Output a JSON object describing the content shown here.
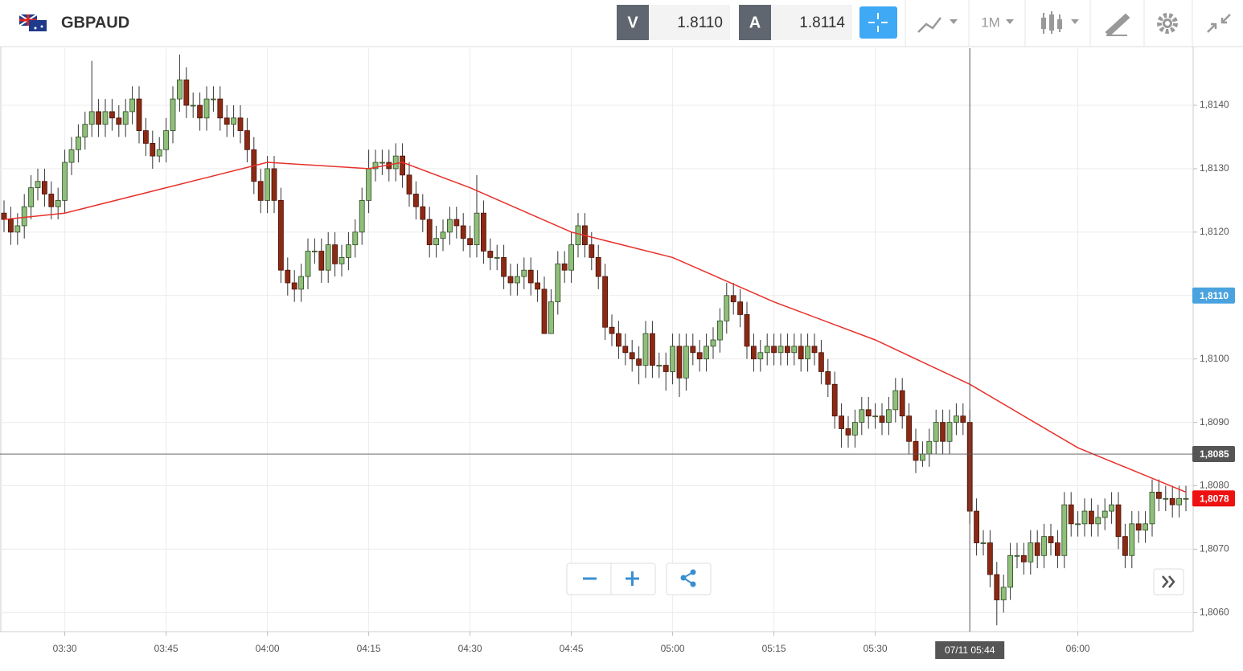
{
  "header": {
    "symbol": "GBPAUD",
    "bid_letter": "V",
    "bid": "1.8110",
    "ask_letter": "A",
    "ask": "1.8114",
    "timeframe": "1M"
  },
  "chart_data": {
    "type": "candlestick",
    "up_color": "#8fbf7a",
    "down_color": "#8b2a14",
    "x": [
      "03:21",
      "03:22",
      "03:23",
      "03:24",
      "03:25",
      "03:26",
      "03:27",
      "03:28",
      "03:29",
      "03:30",
      "03:31",
      "03:32",
      "03:33",
      "03:34",
      "03:35",
      "03:36",
      "03:37",
      "03:38",
      "03:39",
      "03:40",
      "03:41",
      "03:42",
      "03:43",
      "03:44",
      "03:45",
      "03:46",
      "03:47",
      "03:48",
      "03:49",
      "03:50",
      "03:51",
      "03:52",
      "03:53",
      "03:54",
      "03:55",
      "03:56",
      "03:57",
      "03:58",
      "03:59",
      "04:00",
      "04:01",
      "04:02",
      "04:03",
      "04:04",
      "04:05",
      "04:06",
      "04:07",
      "04:08",
      "04:09",
      "04:10",
      "04:11",
      "04:12",
      "04:13",
      "04:14",
      "04:15",
      "04:16",
      "04:17",
      "04:18",
      "04:19",
      "04:20",
      "04:21",
      "04:22",
      "04:23",
      "04:24",
      "04:25",
      "04:26",
      "04:27",
      "04:28",
      "04:29",
      "04:30",
      "04:31",
      "04:32",
      "04:33",
      "04:34",
      "04:35",
      "04:36",
      "04:37",
      "04:38",
      "04:39",
      "04:40",
      "04:41",
      "04:42",
      "04:43",
      "04:44",
      "04:45",
      "04:46",
      "04:47",
      "04:48",
      "04:49",
      "04:50",
      "04:51",
      "04:52",
      "04:53",
      "04:54",
      "04:55",
      "04:56",
      "04:57",
      "04:58",
      "04:59",
      "05:00",
      "05:01",
      "05:02",
      "05:03",
      "05:04",
      "05:05",
      "05:06",
      "05:07",
      "05:08",
      "05:09",
      "05:10",
      "05:11",
      "05:12",
      "05:13",
      "05:14",
      "05:15",
      "05:16",
      "05:17",
      "05:18",
      "05:19",
      "05:20",
      "05:21",
      "05:22",
      "05:23",
      "05:24",
      "05:25",
      "05:26",
      "05:27",
      "05:28",
      "05:29",
      "05:30",
      "05:31",
      "05:32",
      "05:33",
      "05:34",
      "05:35",
      "05:36",
      "05:37",
      "05:38",
      "05:39",
      "05:40",
      "05:41",
      "05:42",
      "05:43",
      "05:44",
      "05:45",
      "05:46",
      "05:47",
      "05:48",
      "05:49",
      "05:50",
      "05:51",
      "05:52",
      "05:53",
      "05:54",
      "05:55",
      "05:56",
      "05:57",
      "05:58",
      "05:59",
      "06:00",
      "06:01",
      "06:02",
      "06:03",
      "06:04",
      "06:05",
      "06:06",
      "06:07",
      "06:08",
      "06:09",
      "06:10",
      "06:11",
      "06:12",
      "06:13",
      "06:14",
      "06:15",
      "06:16"
    ],
    "open": [
      1.8123,
      1.8122,
      1.812,
      1.8121,
      1.8124,
      1.8127,
      1.8128,
      1.8126,
      1.8124,
      1.8125,
      1.8131,
      1.8133,
      1.8135,
      1.8137,
      1.8139,
      1.8137,
      1.8139,
      1.8138,
      1.8137,
      1.8139,
      1.8141,
      1.8136,
      1.8134,
      1.8132,
      1.8133,
      1.8136,
      1.8141,
      1.8144,
      1.814,
      1.814,
      1.8138,
      1.8141,
      1.8141,
      1.8138,
      1.8137,
      1.8138,
      1.8136,
      1.8133,
      1.8128,
      1.8125,
      1.813,
      1.8125,
      1.8114,
      1.8112,
      1.8111,
      1.8113,
      1.8117,
      1.8117,
      1.8114,
      1.8118,
      1.8115,
      1.8116,
      1.8118,
      1.812,
      1.8125,
      1.813,
      1.8131,
      1.8131,
      1.813,
      1.8132,
      1.8129,
      1.8126,
      1.8124,
      1.8122,
      1.8118,
      1.8119,
      1.812,
      1.8122,
      1.8121,
      1.8119,
      1.8118,
      1.8123,
      1.8117,
      1.8116,
      1.8116,
      1.8113,
      1.8112,
      1.8113,
      1.8114,
      1.8112,
      1.8111,
      1.8104,
      1.8109,
      1.8115,
      1.8114,
      1.8118,
      1.8121,
      1.8118,
      1.8116,
      1.8113,
      1.8105,
      1.8104,
      1.8102,
      1.8101,
      1.81,
      1.8099,
      1.8104,
      1.8099,
      1.8099,
      1.8098,
      1.8102,
      1.8097,
      1.8102,
      1.8101,
      1.81,
      1.8102,
      1.8103,
      1.8106,
      1.811,
      1.8109,
      1.8107,
      1.8102,
      1.81,
      1.8101,
      1.8102,
      1.8101,
      1.8102,
      1.8101,
      1.8102,
      1.81,
      1.8102,
      1.8101,
      1.8098,
      1.8096,
      1.8091,
      1.8089,
      1.8088,
      1.809,
      1.8092,
      1.8091,
      1.8091,
      1.809,
      1.8092,
      1.8095,
      1.8091,
      1.8087,
      1.8084,
      1.8085,
      1.8087,
      1.809,
      1.8087,
      1.809,
      1.8091,
      1.809,
      1.8076,
      1.8071,
      1.8071,
      1.8066,
      1.8062,
      1.8064,
      1.8069,
      1.8069,
      1.8068,
      1.8071,
      1.8069,
      1.8072,
      1.8071,
      1.8069,
      1.8077,
      1.8074,
      1.8074,
      1.8076,
      1.8074,
      1.8075,
      1.8076,
      1.8077,
      1.8072,
      1.8069,
      1.8074,
      1.8073,
      1.8074,
      1.8079,
      1.8078,
      1.8078,
      1.8077,
      1.8078
    ],
    "high": [
      1.8125,
      1.8124,
      1.8123,
      1.8126,
      1.8129,
      1.813,
      1.813,
      1.8128,
      1.8127,
      1.8133,
      1.8135,
      1.8137,
      1.8139,
      1.8147,
      1.8141,
      1.8141,
      1.8141,
      1.814,
      1.8141,
      1.8143,
      1.8143,
      1.8138,
      1.8136,
      1.8135,
      1.8138,
      1.8143,
      1.8148,
      1.8146,
      1.8142,
      1.8142,
      1.8143,
      1.8143,
      1.8143,
      1.814,
      1.814,
      1.814,
      1.8138,
      1.8135,
      1.813,
      1.8132,
      1.8132,
      1.8127,
      1.8116,
      1.8114,
      1.8115,
      1.8119,
      1.8119,
      1.8119,
      1.812,
      1.812,
      1.8118,
      1.812,
      1.8122,
      1.8127,
      1.8133,
      1.8133,
      1.8133,
      1.8133,
      1.8134,
      1.8134,
      1.8131,
      1.8128,
      1.8126,
      1.8124,
      1.8121,
      1.8122,
      1.8124,
      1.8124,
      1.8123,
      1.8121,
      1.8129,
      1.8125,
      1.8119,
      1.8118,
      1.8118,
      1.8115,
      1.8115,
      1.8116,
      1.8116,
      1.8114,
      1.8113,
      1.8111,
      1.8117,
      1.8117,
      1.812,
      1.8123,
      1.8123,
      1.812,
      1.8118,
      1.8115,
      1.8107,
      1.8106,
      1.8104,
      1.8103,
      1.8102,
      1.8106,
      1.8106,
      1.8101,
      1.8101,
      1.8104,
      1.8104,
      1.8104,
      1.8104,
      1.8103,
      1.8104,
      1.8105,
      1.8108,
      1.8112,
      1.8112,
      1.8111,
      1.8109,
      1.8104,
      1.8103,
      1.8104,
      1.8104,
      1.8104,
      1.8104,
      1.8104,
      1.8104,
      1.8104,
      1.8104,
      1.8103,
      1.81,
      1.8098,
      1.8093,
      1.8091,
      1.8092,
      1.8094,
      1.8094,
      1.8093,
      1.8093,
      1.8094,
      1.8097,
      1.8097,
      1.8093,
      1.8089,
      1.8087,
      1.8089,
      1.8092,
      1.8092,
      1.8092,
      1.8093,
      1.8093,
      1.8092,
      1.8078,
      1.8073,
      1.8073,
      1.8068,
      1.8066,
      1.8071,
      1.8071,
      1.8071,
      1.8073,
      1.8073,
      1.8074,
      1.8074,
      1.8073,
      1.8079,
      1.8079,
      1.8076,
      1.8078,
      1.8078,
      1.8077,
      1.8078,
      1.8079,
      1.8079,
      1.8074,
      1.8076,
      1.8076,
      1.8076,
      1.8081,
      1.8081,
      1.808,
      1.808,
      1.808,
      1.808
    ],
    "low": [
      1.812,
      1.8118,
      1.8118,
      1.8119,
      1.8122,
      1.8125,
      1.8124,
      1.8122,
      1.8122,
      1.8123,
      1.8129,
      1.8131,
      1.8133,
      1.8135,
      1.8135,
      1.8135,
      1.8136,
      1.8135,
      1.8135,
      1.8137,
      1.8134,
      1.8132,
      1.813,
      1.8131,
      1.8131,
      1.8134,
      1.8139,
      1.8138,
      1.8138,
      1.8136,
      1.8136,
      1.8139,
      1.8136,
      1.8135,
      1.8135,
      1.8134,
      1.8131,
      1.8126,
      1.8123,
      1.8123,
      1.8123,
      1.8112,
      1.811,
      1.8109,
      1.8109,
      1.8111,
      1.8115,
      1.8112,
      1.8112,
      1.8113,
      1.8113,
      1.8114,
      1.8116,
      1.8118,
      1.8123,
      1.8128,
      1.8129,
      1.8128,
      1.8128,
      1.8127,
      1.8124,
      1.8122,
      1.812,
      1.8116,
      1.8116,
      1.8117,
      1.8118,
      1.8119,
      1.8117,
      1.8116,
      1.8116,
      1.8115,
      1.8114,
      1.8114,
      1.8111,
      1.811,
      1.811,
      1.8111,
      1.811,
      1.8109,
      1.8104,
      1.8104,
      1.8107,
      1.8112,
      1.8112,
      1.8116,
      1.8116,
      1.8114,
      1.8111,
      1.8103,
      1.8102,
      1.81,
      1.8099,
      1.8098,
      1.8096,
      1.8097,
      1.8097,
      1.8097,
      1.8095,
      1.8096,
      1.8094,
      1.8095,
      1.8099,
      1.8098,
      1.8098,
      1.81,
      1.8101,
      1.8104,
      1.8107,
      1.8105,
      1.81,
      1.8098,
      1.8098,
      1.8099,
      1.8099,
      1.8099,
      1.8099,
      1.8099,
      1.8098,
      1.8098,
      1.8099,
      1.8096,
      1.8094,
      1.8089,
      1.8086,
      1.8086,
      1.8086,
      1.8088,
      1.8089,
      1.8089,
      1.8088,
      1.8088,
      1.809,
      1.8089,
      1.8085,
      1.8082,
      1.8083,
      1.8083,
      1.8085,
      1.8085,
      1.8085,
      1.8088,
      1.8088,
      1.8074,
      1.8069,
      1.8069,
      1.8064,
      1.8058,
      1.806,
      1.8062,
      1.8067,
      1.8066,
      1.8066,
      1.8067,
      1.8067,
      1.8069,
      1.8067,
      1.8067,
      1.8072,
      1.8072,
      1.8072,
      1.8072,
      1.8072,
      1.8073,
      1.8074,
      1.807,
      1.8067,
      1.8067,
      1.8071,
      1.8071,
      1.8072,
      1.8076,
      1.8076,
      1.8075,
      1.8075,
      1.8076
    ],
    "close": [
      1.8122,
      1.812,
      1.8121,
      1.8124,
      1.8127,
      1.8128,
      1.8126,
      1.8124,
      1.8125,
      1.8131,
      1.8133,
      1.8135,
      1.8137,
      1.8139,
      1.8137,
      1.8139,
      1.8138,
      1.8137,
      1.8139,
      1.8141,
      1.8136,
      1.8134,
      1.8132,
      1.8133,
      1.8136,
      1.8141,
      1.8144,
      1.814,
      1.814,
      1.8138,
      1.8141,
      1.8141,
      1.8138,
      1.8137,
      1.8138,
      1.8136,
      1.8133,
      1.8128,
      1.8125,
      1.813,
      1.8125,
      1.8114,
      1.8112,
      1.8111,
      1.8113,
      1.8117,
      1.8117,
      1.8114,
      1.8118,
      1.8115,
      1.8116,
      1.8118,
      1.812,
      1.8125,
      1.813,
      1.8131,
      1.8131,
      1.813,
      1.8132,
      1.8129,
      1.8126,
      1.8124,
      1.8122,
      1.8118,
      1.8119,
      1.812,
      1.8122,
      1.8121,
      1.8119,
      1.8118,
      1.8123,
      1.8117,
      1.8116,
      1.8116,
      1.8113,
      1.8112,
      1.8113,
      1.8114,
      1.8112,
      1.8111,
      1.8104,
      1.8109,
      1.8115,
      1.8114,
      1.8118,
      1.8121,
      1.8118,
      1.8116,
      1.8113,
      1.8105,
      1.8104,
      1.8102,
      1.8101,
      1.81,
      1.8099,
      1.8104,
      1.8099,
      1.8099,
      1.8098,
      1.8102,
      1.8097,
      1.8102,
      1.8101,
      1.81,
      1.8102,
      1.8103,
      1.8106,
      1.811,
      1.8109,
      1.8107,
      1.8102,
      1.81,
      1.8101,
      1.8102,
      1.8101,
      1.8102,
      1.8101,
      1.8102,
      1.81,
      1.8102,
      1.8101,
      1.8098,
      1.8096,
      1.8091,
      1.8089,
      1.8088,
      1.809,
      1.8092,
      1.8091,
      1.8091,
      1.809,
      1.8092,
      1.8095,
      1.8091,
      1.8087,
      1.8084,
      1.8085,
      1.8087,
      1.809,
      1.8087,
      1.809,
      1.8091,
      1.809,
      1.8076,
      1.8071,
      1.8071,
      1.8066,
      1.8062,
      1.8064,
      1.8069,
      1.8069,
      1.8068,
      1.8071,
      1.8069,
      1.8072,
      1.8071,
      1.8069,
      1.8077,
      1.8074,
      1.8074,
      1.8076,
      1.8074,
      1.8075,
      1.8076,
      1.8077,
      1.8072,
      1.8069,
      1.8074,
      1.8073,
      1.8074,
      1.8079,
      1.8078,
      1.8078,
      1.8077,
      1.8078,
      1.8078
    ],
    "moving_average": {
      "color": "#e8302a",
      "x": [
        "03:21",
        "03:30",
        "03:45",
        "04:00",
        "04:15",
        "04:20",
        "04:30",
        "04:45",
        "05:00",
        "05:15",
        "05:30",
        "05:44",
        "06:00",
        "06:16"
      ],
      "values": [
        1.8122,
        1.8123,
        1.8127,
        1.8131,
        1.813,
        1.8131,
        1.8127,
        1.812,
        1.8116,
        1.8109,
        1.8103,
        1.8096,
        1.8086,
        1.8079
      ]
    },
    "ylim": [
      1.8057,
      1.8149
    ],
    "yticks": [
      {
        "value": 1.806,
        "label": "1,8060"
      },
      {
        "value": 1.807,
        "label": "1,8070"
      },
      {
        "value": 1.808,
        "label": "1,8080"
      },
      {
        "value": 1.809,
        "label": "1,8090"
      },
      {
        "value": 1.81,
        "label": "1,8100"
      },
      {
        "value": 1.811,
        "label": "1,8110"
      },
      {
        "value": 1.812,
        "label": "1,8120"
      },
      {
        "value": 1.813,
        "label": "1,8130"
      },
      {
        "value": 1.814,
        "label": "1,8140"
      }
    ],
    "xticks": [
      "03:30",
      "03:45",
      "04:00",
      "04:15",
      "04:30",
      "04:45",
      "05:00",
      "05:15",
      "05:30",
      "06:00"
    ],
    "grid": true,
    "crosshair": {
      "x": "05:44",
      "x_label": "07/11 05:44",
      "y": {
        "value": 1.8085,
        "label": "1,8085"
      },
      "color": "#555555"
    },
    "bid_tag": {
      "value": 1.811,
      "label": "1,8110",
      "color": "#4aa3df"
    },
    "last_tag": {
      "value": 1.8078,
      "label": "1,8078",
      "color": "#ee1111"
    }
  }
}
